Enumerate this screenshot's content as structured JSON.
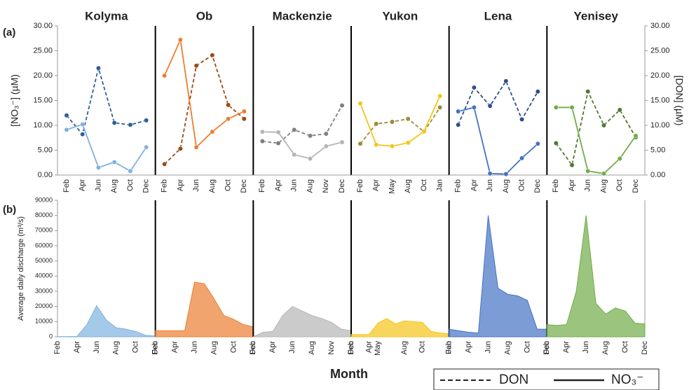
{
  "panel_labels": [
    "(a)",
    "(b)"
  ],
  "x_label": "Month",
  "chart_data": [
    {
      "type": "line",
      "title": "Kolyma",
      "categories": [
        "Feb",
        "Apr",
        "Jun",
        "Aug",
        "Oct",
        "Dec"
      ],
      "ylabel": "[NO₃⁻] (µM)",
      "series": [
        {
          "name": "DON",
          "color": "#2e5f9a",
          "dash": true,
          "values": [
            12,
            8.2,
            21.5,
            10.5,
            10.1,
            11
          ]
        },
        {
          "name": "NO₃⁻",
          "color": "#7fb2e0",
          "values": [
            9.1,
            10.2,
            1.5,
            2.6,
            0.8,
            5.6
          ]
        }
      ],
      "ylim": [
        0,
        30
      ],
      "yticks": [
        {
          "value": 0,
          "label": "0.00"
        },
        {
          "value": 5,
          "label": "5.00"
        },
        {
          "value": 10,
          "label": "10.00"
        },
        {
          "value": 15,
          "label": "15.00"
        },
        {
          "value": 20,
          "label": "20.00"
        },
        {
          "value": 25,
          "label": "25.00"
        },
        {
          "value": 30,
          "label": "30.00"
        }
      ]
    },
    {
      "type": "line",
      "title": "Ob",
      "categories": [
        "Feb",
        "Apr",
        "Jun",
        "Aug",
        "Oct",
        "Dec"
      ],
      "series": [
        {
          "name": "DON",
          "color": "#9c4a14",
          "dash": true,
          "values": [
            2.2,
            5.3,
            22,
            24.1,
            14.1,
            11.3
          ]
        },
        {
          "name": "NO₃⁻",
          "color": "#ed7d31",
          "values": [
            20,
            27.2,
            5.6,
            8.7,
            11.3,
            12.8
          ]
        }
      ],
      "ylim": [
        0,
        30
      ]
    },
    {
      "type": "line",
      "title": "Mackenzie",
      "categories": [
        "Feb",
        "Apr",
        "Jun",
        "Aug",
        "Nov",
        "Dec"
      ],
      "series": [
        {
          "name": "DON",
          "color": "#7f7f7f",
          "dash": true,
          "values": [
            6.8,
            6.4,
            9.1,
            7.9,
            8.3,
            14
          ]
        },
        {
          "name": "NO₃⁻",
          "color": "#b5b5b5",
          "values": [
            8.7,
            8.6,
            4.1,
            3.3,
            5.8,
            6.6
          ]
        }
      ],
      "ylim": [
        0,
        30
      ]
    },
    {
      "type": "line",
      "title": "Yukon",
      "categories": [
        "Feb",
        "Apr",
        "May",
        "Aug",
        "Oct",
        "Jan"
      ],
      "series": [
        {
          "name": "DON",
          "color": "#9e8a3a",
          "dash": true,
          "values": [
            6.3,
            10.3,
            10.7,
            11.3,
            8.7,
            13.6
          ]
        },
        {
          "name": "NO₃⁻",
          "color": "#f5c518",
          "values": [
            14.4,
            6.1,
            5.8,
            6.5,
            8.8,
            15.9
          ]
        }
      ],
      "ylim": [
        0,
        30
      ]
    },
    {
      "type": "line",
      "title": "Lena",
      "categories": [
        "Feb",
        "Apr",
        "Jun",
        "Aug",
        "Oct",
        "Dec"
      ],
      "series": [
        {
          "name": "DON",
          "color": "#2f4f8a",
          "dash": true,
          "values": [
            10.1,
            17.6,
            13.9,
            18.9,
            11.2,
            16.8
          ]
        },
        {
          "name": "NO₃⁻",
          "color": "#4472c4",
          "values": [
            12.8,
            13.6,
            0.3,
            0.2,
            3.4,
            6.3
          ]
        }
      ],
      "ylim": [
        0,
        30
      ]
    },
    {
      "type": "line",
      "title": "Yenisey",
      "categories": [
        "Feb",
        "Apr",
        "Jun",
        "Aug",
        "Oct",
        "Dec"
      ],
      "y2label": "[DON] (µM)",
      "series": [
        {
          "name": "DON",
          "color": "#4e7a2f",
          "dash": true,
          "values": [
            6.4,
            2,
            16.8,
            10,
            13.1,
            7.6
          ]
        },
        {
          "name": "NO₃⁻",
          "color": "#70ad47",
          "values": [
            13.6,
            13.6,
            0.8,
            0.3,
            3.3,
            7.9
          ]
        }
      ],
      "ylim": [
        0,
        30
      ],
      "y2lim": [
        0,
        30
      ],
      "y2ticks": [
        {
          "value": 0,
          "label": "0.00"
        },
        {
          "value": 5,
          "label": "5.00"
        },
        {
          "value": 10,
          "label": "10.00"
        },
        {
          "value": 15,
          "label": "15.00"
        },
        {
          "value": 20,
          "label": "20.00"
        },
        {
          "value": 25,
          "label": "25.00"
        },
        {
          "value": 30,
          "label": "30.00"
        }
      ]
    },
    {
      "type": "area",
      "ylabel": "Average daily discharge (m³/s)",
      "color": "#7fb2e0",
      "categories": [
        "Feb",
        null,
        "Apr",
        null,
        "Jun",
        null,
        "Aug",
        null,
        "Oct",
        null,
        "Dec"
      ],
      "values": [
        200,
        200,
        300,
        8000,
        20500,
        11000,
        6000,
        5000,
        3500,
        1000,
        500
      ],
      "ylim": [
        0,
        90000
      ],
      "yticks": [
        0,
        10000,
        20000,
        30000,
        40000,
        50000,
        60000,
        70000,
        80000,
        90000
      ]
    },
    {
      "type": "area",
      "color": "#ed7d31",
      "categories": [
        "Feb",
        null,
        "Apr",
        null,
        "Jun",
        null,
        "Aug",
        null,
        "Oct",
        null,
        "Dec"
      ],
      "values": [
        4000,
        4000,
        4000,
        4000,
        36000,
        35000,
        25000,
        14000,
        11500,
        8000,
        6500
      ],
      "ylim": [
        0,
        90000
      ]
    },
    {
      "type": "area",
      "color": "#b5b5b5",
      "categories": [
        "Feb",
        null,
        "Apr",
        null,
        "Jun",
        null,
        "Aug",
        null,
        "Nov",
        null,
        "Dec"
      ],
      "values": [
        0,
        3000,
        3500,
        14000,
        20000,
        17000,
        14000,
        12000,
        9500,
        5000,
        4000
      ],
      "ylim": [
        0,
        90000
      ]
    },
    {
      "type": "area",
      "color": "#f5c518",
      "categories": [
        "Feb",
        null,
        "Apr",
        "May",
        null,
        null,
        "Aug",
        null,
        "Oct",
        null,
        null,
        "Jan"
      ],
      "values": [
        1500,
        1500,
        1500,
        9000,
        12000,
        8500,
        10500,
        10000,
        9500,
        3500,
        2500,
        2000
      ],
      "ylim": [
        0,
        90000
      ]
    },
    {
      "type": "area",
      "color": "#4472c4",
      "categories": [
        "Feb",
        null,
        "Apr",
        null,
        "Jun",
        null,
        "Aug",
        null,
        "Oct",
        null,
        "Dec"
      ],
      "values": [
        5000,
        4000,
        3000,
        2500,
        80000,
        32000,
        28000,
        27000,
        24000,
        5000,
        5000
      ],
      "ylim": [
        0,
        90000
      ]
    },
    {
      "type": "area",
      "color": "#70ad47",
      "categories": [
        "Feb",
        null,
        "Apr",
        null,
        "Jun",
        null,
        "Aug",
        null,
        "Oct",
        null,
        "Dec"
      ],
      "values": [
        8000,
        7500,
        8000,
        30000,
        80000,
        22000,
        15000,
        19000,
        17000,
        9000,
        8500
      ],
      "ylim": [
        0,
        90000
      ]
    }
  ]
}
